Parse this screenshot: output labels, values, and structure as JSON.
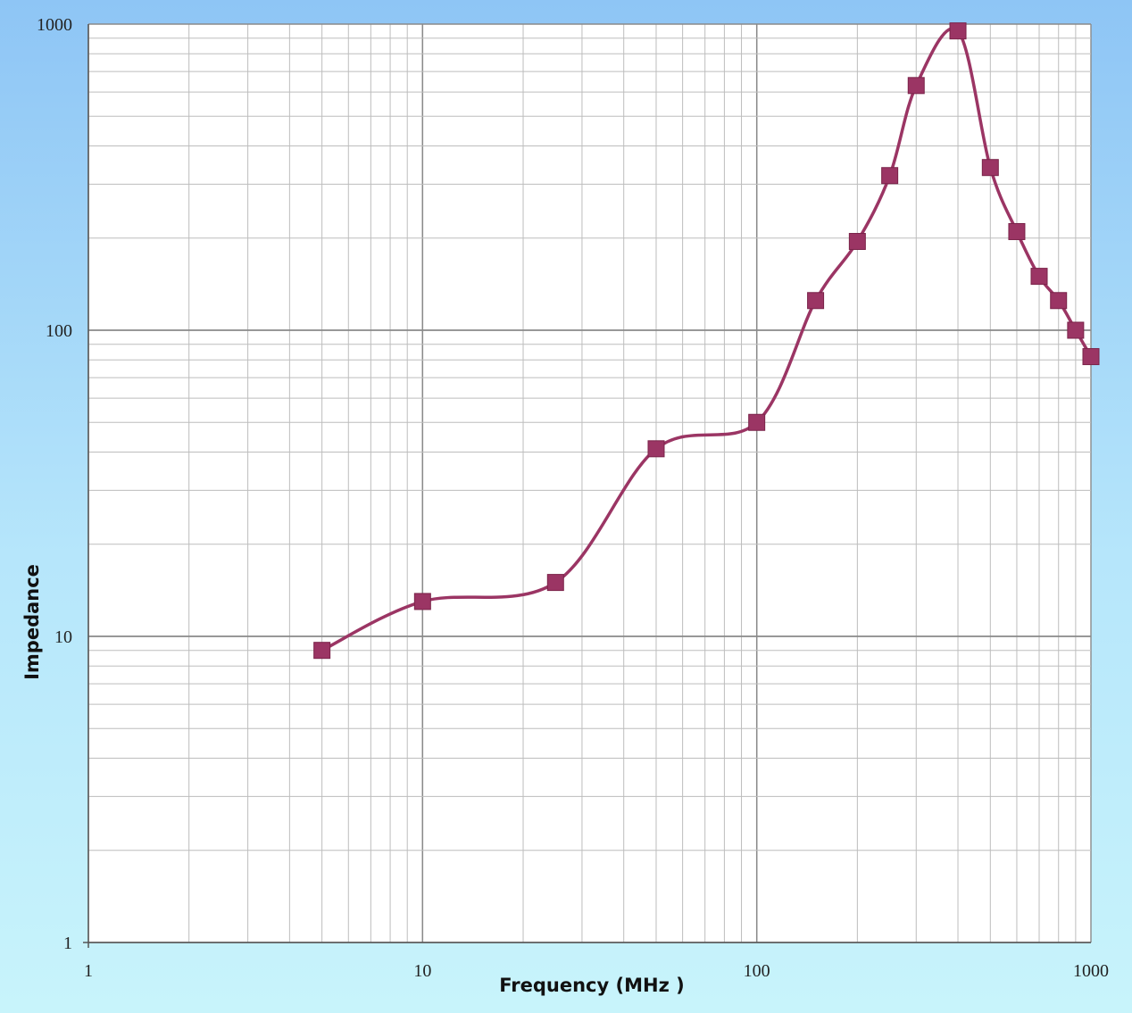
{
  "chart_data": {
    "type": "line",
    "title": "",
    "xlabel": "Frequency (MHz )",
    "ylabel": "Impedance",
    "xscale": "log",
    "yscale": "log",
    "xlim": [
      1,
      1000
    ],
    "ylim": [
      1,
      1000
    ],
    "grid": true,
    "legend": "none",
    "x_ticks": [
      "1",
      "10",
      "100",
      "1000"
    ],
    "y_ticks": [
      "1",
      "10",
      "100",
      "1000"
    ],
    "series": [
      {
        "x": [
          5,
          10,
          25,
          50,
          100,
          150,
          200,
          250,
          300,
          400,
          500,
          600,
          700,
          800,
          900,
          1000
        ],
        "y": [
          9,
          13,
          15,
          41,
          50,
          125,
          195,
          320,
          630,
          950,
          340,
          210,
          150,
          125,
          100,
          82
        ]
      }
    ],
    "colors": {
      "series": "#9b3564",
      "marker": "#9b3564",
      "grid": "#bdbdbd",
      "major_grid": "#8a8a8a",
      "plot_bg": "#ffffff"
    }
  }
}
